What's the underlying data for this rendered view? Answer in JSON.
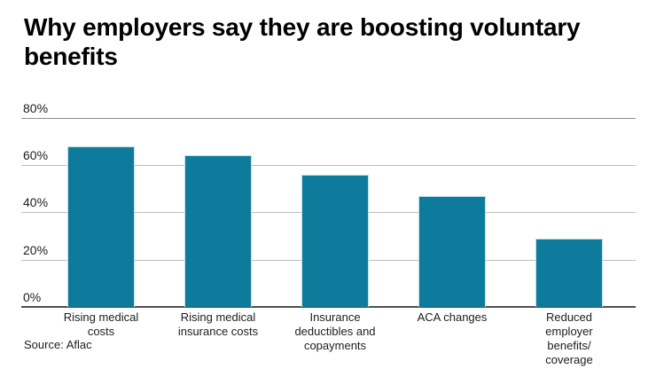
{
  "page": {
    "background": "#ffffff"
  },
  "chart_data": {
    "type": "bar",
    "title": "Why employers say they are boosting voluntary benefits",
    "categories": [
      "Rising medical costs",
      "Rising medical insurance costs",
      "Insurance deductibles and copayments",
      "ACA changes",
      "Reduced employer benefits/coverage"
    ],
    "category_display": [
      "Rising medical\ncosts",
      "Rising medical\ninsurance costs",
      "Insurance\ndeductibles and\ncopayments",
      "ACA changes",
      "Reduced\nemployer\nbenefits/\ncoverage"
    ],
    "values": [
      68,
      64,
      56,
      47,
      29
    ],
    "unit": "%",
    "xlabel": "",
    "ylabel": "",
    "ylim": [
      0,
      80
    ],
    "ytick_values": [
      0,
      20,
      40,
      60,
      80
    ],
    "ytick_labels": [
      "0%",
      "20%",
      "40%",
      "60%",
      "80%"
    ],
    "grid": true,
    "legend": false,
    "bar_color": "#0f7b9c",
    "bar_edge_color": "#bfdfe9",
    "gridline_color": "#bdbdbd",
    "top_line_color": "#8d8d8d",
    "baseline_color": "#4f4f4f",
    "source": "Source: Aflac"
  }
}
